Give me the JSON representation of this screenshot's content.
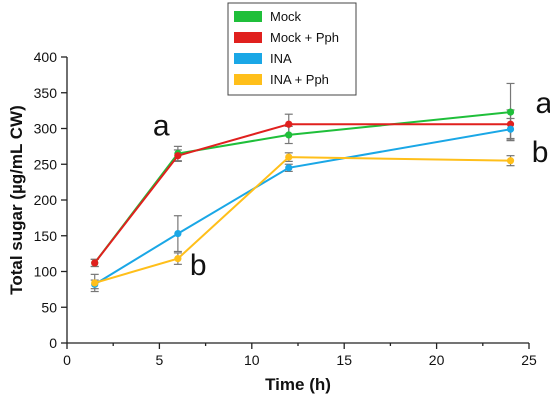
{
  "chart_data": {
    "type": "line",
    "xlabel": "Time (h)",
    "ylabel": "Total sugar (µg/mL CW)",
    "xlim": [
      0,
      25
    ],
    "ylim": [
      0,
      400
    ],
    "xticks": [
      0,
      5,
      10,
      15,
      20,
      25
    ],
    "yticks": [
      0,
      50,
      100,
      150,
      200,
      250,
      300,
      350,
      400
    ],
    "grid": false,
    "legend_position": "top-center",
    "series": [
      {
        "name": "Mock",
        "color": "#1fbf3a",
        "x": [
          1.5,
          6,
          12,
          24
        ],
        "y": [
          112,
          265,
          291,
          323
        ],
        "error": [
          5,
          10,
          12,
          40
        ]
      },
      {
        "name": "Mock + Pph",
        "color": "#e0201e",
        "x": [
          1.5,
          6,
          12,
          24
        ],
        "y": [
          112,
          262,
          306,
          306
        ],
        "error": [
          5,
          8,
          14,
          20
        ]
      },
      {
        "name": "INA",
        "color": "#1aa7e6",
        "x": [
          1.5,
          6,
          12,
          24
        ],
        "y": [
          82,
          153,
          245,
          299
        ],
        "error": [
          6,
          25,
          5,
          15
        ]
      },
      {
        "name": "INA + Pph",
        "color": "#ffbf1a",
        "x": [
          1.5,
          6,
          12,
          24
        ],
        "y": [
          84,
          118,
          260,
          255
        ],
        "error": [
          12,
          8,
          6,
          7
        ]
      }
    ],
    "annotations": [
      {
        "text": "a",
        "x": 5.1,
        "y": 290
      },
      {
        "text": "b",
        "x": 7.1,
        "y": 95
      },
      {
        "text": "a",
        "x": 25.8,
        "y": 322
      },
      {
        "text": "b",
        "x": 25.6,
        "y": 253
      }
    ]
  }
}
